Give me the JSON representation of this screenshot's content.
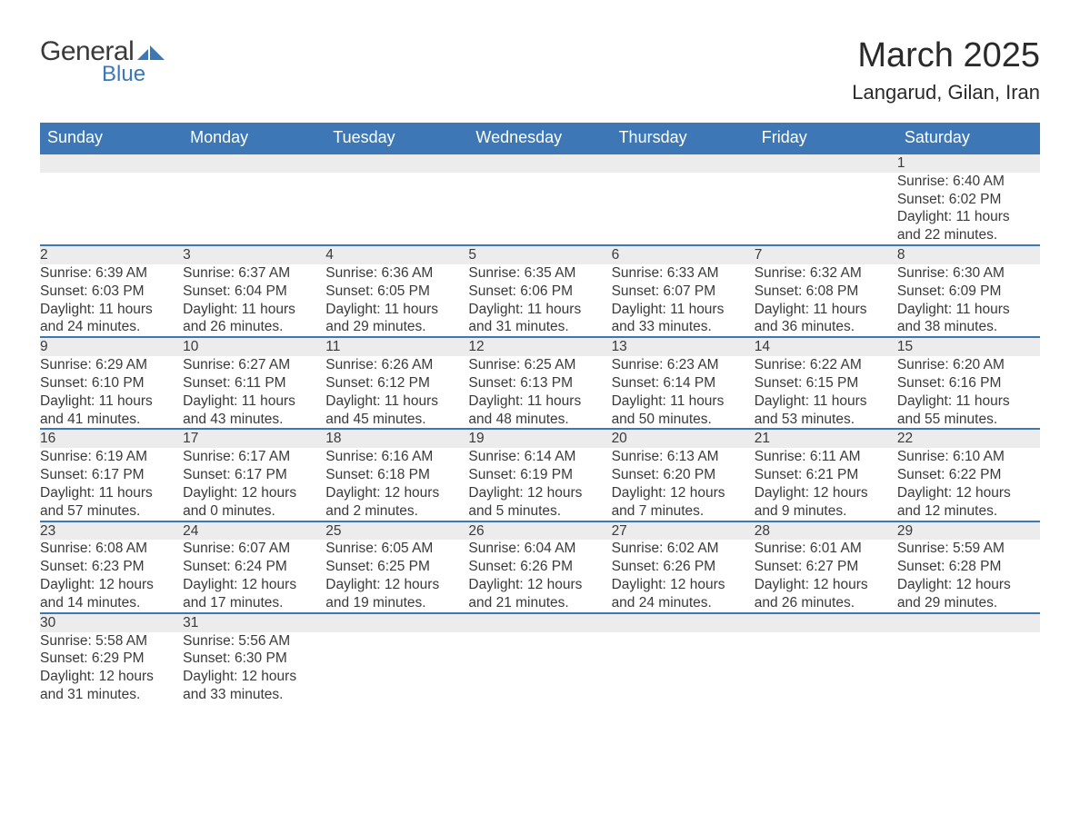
{
  "brand": {
    "general": "General",
    "blue": "Blue",
    "accent": "#3d77b6"
  },
  "title": "March 2025",
  "location": "Langarud, Gilan, Iran",
  "day_headers": [
    "Sunday",
    "Monday",
    "Tuesday",
    "Wednesday",
    "Thursday",
    "Friday",
    "Saturday"
  ],
  "colors": {
    "header_bg": "#3d77b6",
    "header_text": "#ffffff",
    "daynum_bg": "#ececec",
    "border_top": "#3d77b6",
    "text": "#3a3a3a",
    "page_bg": "#ffffff"
  },
  "typography": {
    "title_fontsize": 38,
    "location_fontsize": 22,
    "header_fontsize": 18,
    "daynum_fontsize": 18,
    "body_fontsize": 15.5
  },
  "first_day_index": 6,
  "weeks": [
    [
      null,
      null,
      null,
      null,
      null,
      null,
      {
        "d": "1",
        "sunrise": "Sunrise: 6:40 AM",
        "sunset": "Sunset: 6:02 PM",
        "dl1": "Daylight: 11 hours",
        "dl2": "and 22 minutes."
      }
    ],
    [
      {
        "d": "2",
        "sunrise": "Sunrise: 6:39 AM",
        "sunset": "Sunset: 6:03 PM",
        "dl1": "Daylight: 11 hours",
        "dl2": "and 24 minutes."
      },
      {
        "d": "3",
        "sunrise": "Sunrise: 6:37 AM",
        "sunset": "Sunset: 6:04 PM",
        "dl1": "Daylight: 11 hours",
        "dl2": "and 26 minutes."
      },
      {
        "d": "4",
        "sunrise": "Sunrise: 6:36 AM",
        "sunset": "Sunset: 6:05 PM",
        "dl1": "Daylight: 11 hours",
        "dl2": "and 29 minutes."
      },
      {
        "d": "5",
        "sunrise": "Sunrise: 6:35 AM",
        "sunset": "Sunset: 6:06 PM",
        "dl1": "Daylight: 11 hours",
        "dl2": "and 31 minutes."
      },
      {
        "d": "6",
        "sunrise": "Sunrise: 6:33 AM",
        "sunset": "Sunset: 6:07 PM",
        "dl1": "Daylight: 11 hours",
        "dl2": "and 33 minutes."
      },
      {
        "d": "7",
        "sunrise": "Sunrise: 6:32 AM",
        "sunset": "Sunset: 6:08 PM",
        "dl1": "Daylight: 11 hours",
        "dl2": "and 36 minutes."
      },
      {
        "d": "8",
        "sunrise": "Sunrise: 6:30 AM",
        "sunset": "Sunset: 6:09 PM",
        "dl1": "Daylight: 11 hours",
        "dl2": "and 38 minutes."
      }
    ],
    [
      {
        "d": "9",
        "sunrise": "Sunrise: 6:29 AM",
        "sunset": "Sunset: 6:10 PM",
        "dl1": "Daylight: 11 hours",
        "dl2": "and 41 minutes."
      },
      {
        "d": "10",
        "sunrise": "Sunrise: 6:27 AM",
        "sunset": "Sunset: 6:11 PM",
        "dl1": "Daylight: 11 hours",
        "dl2": "and 43 minutes."
      },
      {
        "d": "11",
        "sunrise": "Sunrise: 6:26 AM",
        "sunset": "Sunset: 6:12 PM",
        "dl1": "Daylight: 11 hours",
        "dl2": "and 45 minutes."
      },
      {
        "d": "12",
        "sunrise": "Sunrise: 6:25 AM",
        "sunset": "Sunset: 6:13 PM",
        "dl1": "Daylight: 11 hours",
        "dl2": "and 48 minutes."
      },
      {
        "d": "13",
        "sunrise": "Sunrise: 6:23 AM",
        "sunset": "Sunset: 6:14 PM",
        "dl1": "Daylight: 11 hours",
        "dl2": "and 50 minutes."
      },
      {
        "d": "14",
        "sunrise": "Sunrise: 6:22 AM",
        "sunset": "Sunset: 6:15 PM",
        "dl1": "Daylight: 11 hours",
        "dl2": "and 53 minutes."
      },
      {
        "d": "15",
        "sunrise": "Sunrise: 6:20 AM",
        "sunset": "Sunset: 6:16 PM",
        "dl1": "Daylight: 11 hours",
        "dl2": "and 55 minutes."
      }
    ],
    [
      {
        "d": "16",
        "sunrise": "Sunrise: 6:19 AM",
        "sunset": "Sunset: 6:17 PM",
        "dl1": "Daylight: 11 hours",
        "dl2": "and 57 minutes."
      },
      {
        "d": "17",
        "sunrise": "Sunrise: 6:17 AM",
        "sunset": "Sunset: 6:17 PM",
        "dl1": "Daylight: 12 hours",
        "dl2": "and 0 minutes."
      },
      {
        "d": "18",
        "sunrise": "Sunrise: 6:16 AM",
        "sunset": "Sunset: 6:18 PM",
        "dl1": "Daylight: 12 hours",
        "dl2": "and 2 minutes."
      },
      {
        "d": "19",
        "sunrise": "Sunrise: 6:14 AM",
        "sunset": "Sunset: 6:19 PM",
        "dl1": "Daylight: 12 hours",
        "dl2": "and 5 minutes."
      },
      {
        "d": "20",
        "sunrise": "Sunrise: 6:13 AM",
        "sunset": "Sunset: 6:20 PM",
        "dl1": "Daylight: 12 hours",
        "dl2": "and 7 minutes."
      },
      {
        "d": "21",
        "sunrise": "Sunrise: 6:11 AM",
        "sunset": "Sunset: 6:21 PM",
        "dl1": "Daylight: 12 hours",
        "dl2": "and 9 minutes."
      },
      {
        "d": "22",
        "sunrise": "Sunrise: 6:10 AM",
        "sunset": "Sunset: 6:22 PM",
        "dl1": "Daylight: 12 hours",
        "dl2": "and 12 minutes."
      }
    ],
    [
      {
        "d": "23",
        "sunrise": "Sunrise: 6:08 AM",
        "sunset": "Sunset: 6:23 PM",
        "dl1": "Daylight: 12 hours",
        "dl2": "and 14 minutes."
      },
      {
        "d": "24",
        "sunrise": "Sunrise: 6:07 AM",
        "sunset": "Sunset: 6:24 PM",
        "dl1": "Daylight: 12 hours",
        "dl2": "and 17 minutes."
      },
      {
        "d": "25",
        "sunrise": "Sunrise: 6:05 AM",
        "sunset": "Sunset: 6:25 PM",
        "dl1": "Daylight: 12 hours",
        "dl2": "and 19 minutes."
      },
      {
        "d": "26",
        "sunrise": "Sunrise: 6:04 AM",
        "sunset": "Sunset: 6:26 PM",
        "dl1": "Daylight: 12 hours",
        "dl2": "and 21 minutes."
      },
      {
        "d": "27",
        "sunrise": "Sunrise: 6:02 AM",
        "sunset": "Sunset: 6:26 PM",
        "dl1": "Daylight: 12 hours",
        "dl2": "and 24 minutes."
      },
      {
        "d": "28",
        "sunrise": "Sunrise: 6:01 AM",
        "sunset": "Sunset: 6:27 PM",
        "dl1": "Daylight: 12 hours",
        "dl2": "and 26 minutes."
      },
      {
        "d": "29",
        "sunrise": "Sunrise: 5:59 AM",
        "sunset": "Sunset: 6:28 PM",
        "dl1": "Daylight: 12 hours",
        "dl2": "and 29 minutes."
      }
    ],
    [
      {
        "d": "30",
        "sunrise": "Sunrise: 5:58 AM",
        "sunset": "Sunset: 6:29 PM",
        "dl1": "Daylight: 12 hours",
        "dl2": "and 31 minutes."
      },
      {
        "d": "31",
        "sunrise": "Sunrise: 5:56 AM",
        "sunset": "Sunset: 6:30 PM",
        "dl1": "Daylight: 12 hours",
        "dl2": "and 33 minutes."
      },
      null,
      null,
      null,
      null,
      null
    ]
  ]
}
